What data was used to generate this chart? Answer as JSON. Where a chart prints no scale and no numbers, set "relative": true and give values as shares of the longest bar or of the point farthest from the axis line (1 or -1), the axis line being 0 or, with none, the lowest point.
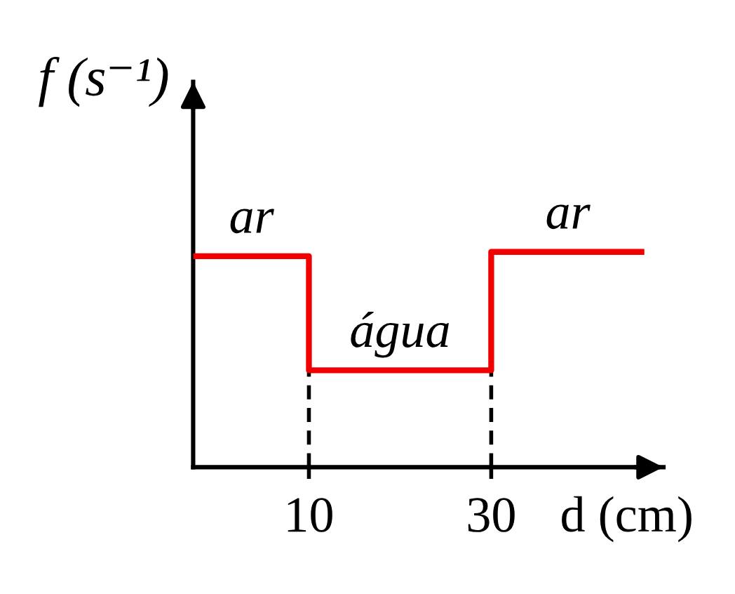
{
  "chart_data": {
    "type": "step",
    "relative": true,
    "xlabel": "d (cm)",
    "ylabel": "f (s⁻¹)",
    "x": [
      -2.7,
      10,
      30,
      46.8
    ],
    "series": [
      {
        "color": "#f00000",
        "values": [
          0.98,
          0.45,
          1,
          1
        ]
      }
    ],
    "xlim": [
      -2.7,
      48.9
    ],
    "xticks": [
      10,
      30
    ],
    "tick_labels": "x",
    "ref_lines": [
      {
        "axis": "x",
        "value": 10,
        "color": "#000000",
        "line_style": "dashed"
      },
      {
        "axis": "x",
        "value": 30,
        "color": "#000000",
        "line_style": "dashed"
      }
    ],
    "annotations": [
      {
        "text": "ar",
        "x": 3.7,
        "y": 0.98
      },
      {
        "text": "água",
        "x": 20,
        "y": 0.45
      },
      {
        "text": "ar",
        "x": 38.4,
        "y": 1
      }
    ]
  }
}
